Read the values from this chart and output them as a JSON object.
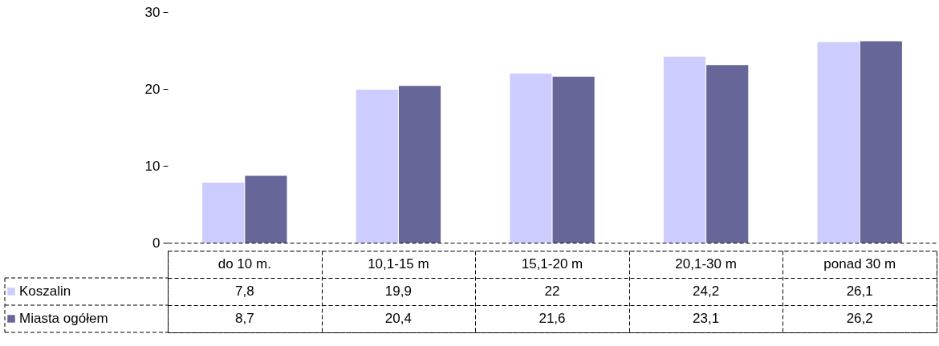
{
  "chart_data": {
    "type": "bar",
    "categories": [
      "do 10 m.",
      "10,1-15 m",
      "15,1-20 m",
      "20,1-30 m",
      "ponad 30 m"
    ],
    "series": [
      {
        "name": "Koszalin",
        "color": "#ccccff",
        "values": [
          7.8,
          19.9,
          22,
          24.2,
          26.1
        ],
        "value_labels": [
          "7,8",
          "19,9",
          "22",
          "24,2",
          "26,1"
        ]
      },
      {
        "name": "Miasta ogółem",
        "color": "#666699",
        "values": [
          8.7,
          20.4,
          21.6,
          23.1,
          26.2
        ],
        "value_labels": [
          "8,7",
          "20,4",
          "21,6",
          "23,1",
          "26,2"
        ]
      }
    ],
    "ylim": [
      0,
      30
    ],
    "yticks": [
      0,
      10,
      20,
      30
    ],
    "grid": false,
    "legend": "bottom left",
    "data_labels": true
  }
}
